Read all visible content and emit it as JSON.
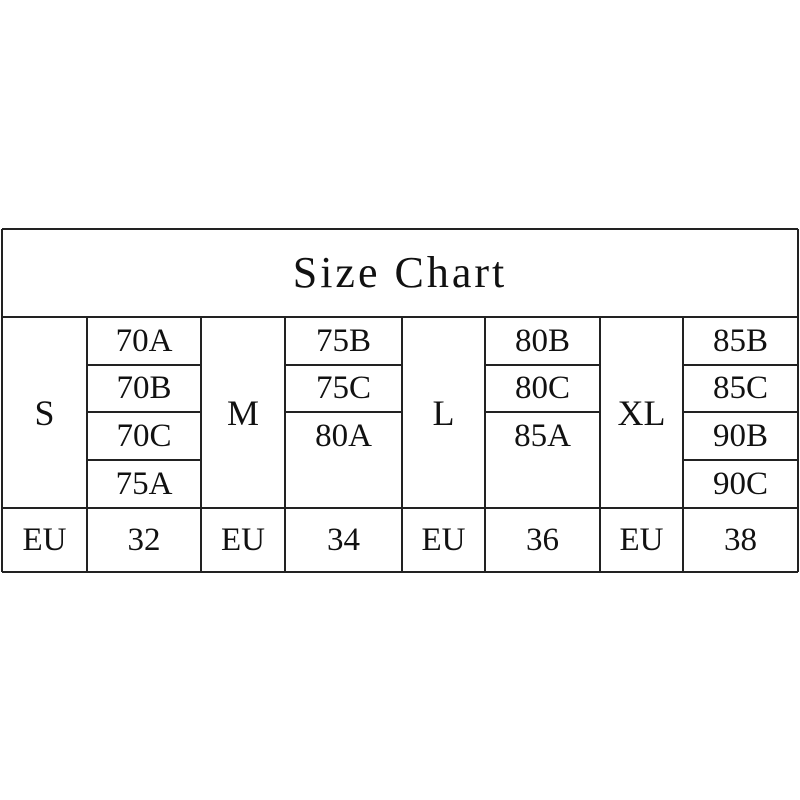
{
  "title": "Size Chart",
  "sizes": [
    {
      "label": "S",
      "cups": [
        "70A",
        "70B",
        "70C",
        "75A"
      ],
      "region": "EU",
      "eu_size": "32"
    },
    {
      "label": "M",
      "cups": [
        "75B",
        "75C",
        "80A"
      ],
      "region": "EU",
      "eu_size": "34"
    },
    {
      "label": "L",
      "cups": [
        "80B",
        "80C",
        "85A"
      ],
      "region": "EU",
      "eu_size": "36"
    },
    {
      "label": "XL",
      "cups": [
        "85B",
        "85C",
        "90B",
        "90C"
      ],
      "region": "EU",
      "eu_size": "38"
    }
  ],
  "colors": {
    "line": "#222222",
    "text": "#111111",
    "background": "#ffffff"
  }
}
